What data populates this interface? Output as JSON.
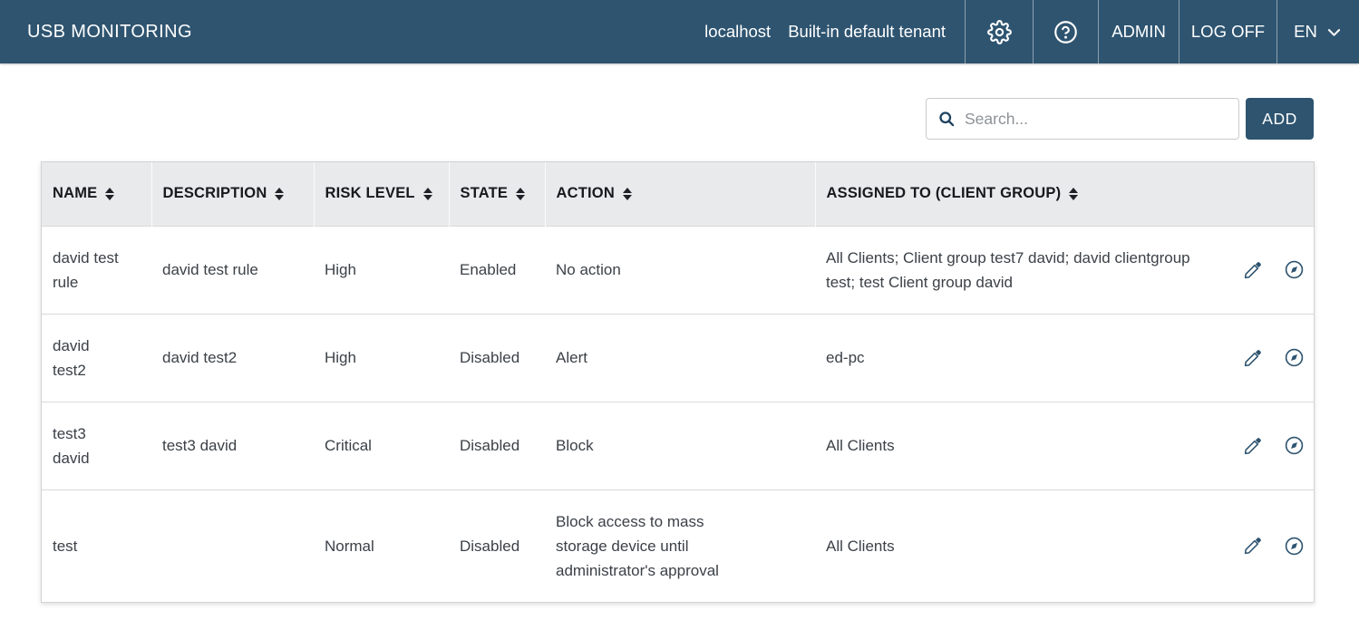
{
  "app": {
    "title": "USB MONITORING",
    "host": "localhost",
    "tenant": "Built-in default tenant",
    "nav": {
      "admin_label": "ADMIN",
      "logoff_label": "LOG OFF",
      "language_label": "EN"
    },
    "icons": {
      "settings": "gear-icon",
      "help": "help-circle-icon",
      "language": "chevron-down-icon"
    }
  },
  "toolbar": {
    "search_placeholder": "Search...",
    "add_label": "ADD"
  },
  "table": {
    "columns": [
      {
        "key": "name",
        "label": "NAME",
        "sortable": true
      },
      {
        "key": "description",
        "label": "DESCRIPTION",
        "sortable": true
      },
      {
        "key": "risk_level",
        "label": "RISK LEVEL",
        "sortable": true
      },
      {
        "key": "state",
        "label": "STATE",
        "sortable": true
      },
      {
        "key": "action",
        "label": "ACTION",
        "sortable": true
      },
      {
        "key": "assigned_to",
        "label": "ASSIGNED TO (CLIENT GROUP)",
        "sortable": true
      }
    ],
    "row_action_icons": [
      "pencil-icon",
      "compass-icon"
    ],
    "rows": [
      {
        "name": "david test rule",
        "description": "david test rule",
        "risk_level": "High",
        "state": "Enabled",
        "action": "No action",
        "assigned_to": "All Clients; Client group test7 david; david clientgroup test; test Client group david"
      },
      {
        "name": "david test2",
        "description": "david test2",
        "risk_level": "High",
        "state": "Disabled",
        "action": "Alert",
        "assigned_to": "ed-pc"
      },
      {
        "name": "test3 david",
        "description": "test3 david",
        "risk_level": "Critical",
        "state": "Disabled",
        "action": "Block",
        "assigned_to": "All Clients"
      },
      {
        "name": "test",
        "description": "",
        "risk_level": "Normal",
        "state": "Disabled",
        "action": "Block access to mass storage device until administrator's approval",
        "assigned_to": "All Clients"
      }
    ]
  },
  "colors": {
    "header_bg": "#2e5470",
    "accent": "#2e5470",
    "table_header_bg": "#e8eaec",
    "body_text": "#3b4147",
    "row_border": "#d9d9d9",
    "icon_blue": "#2e5470"
  }
}
